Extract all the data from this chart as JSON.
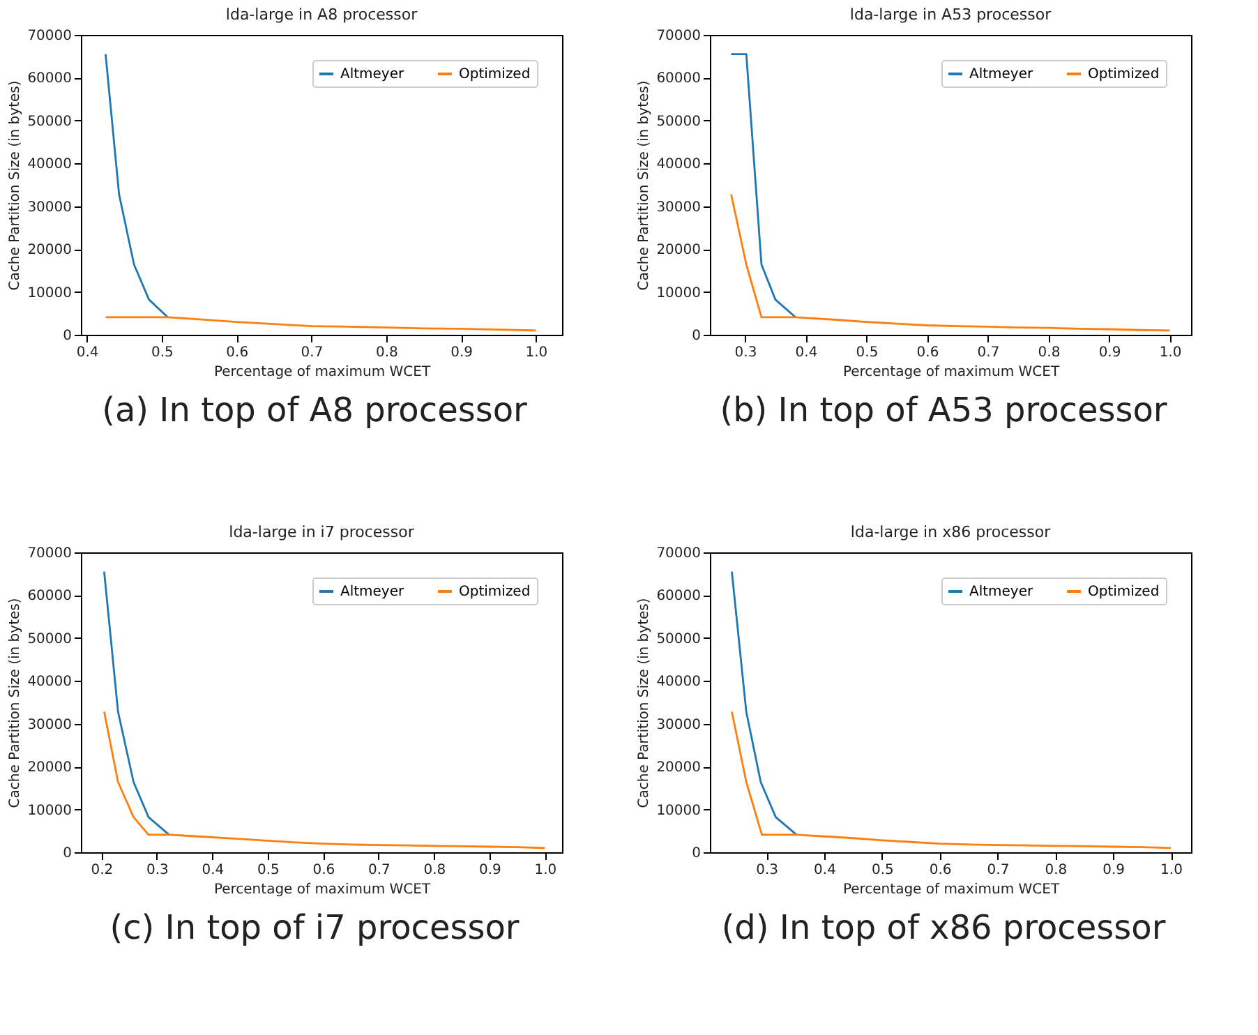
{
  "chart_data": [
    {
      "type": "line",
      "title": "lda-large in A8 processor",
      "xlabel": "Percentage of maximum WCET",
      "ylabel": "Cache Partition Size (in bytes)",
      "annotations": [
        "(a) In top of A8 processor"
      ],
      "xlim": [
        0.392,
        1.035
      ],
      "ylim": [
        0,
        70000
      ],
      "xticks": [
        {
          "value": 0.4,
          "label": "0.4"
        },
        {
          "value": 0.5,
          "label": "0.5"
        },
        {
          "value": 0.6,
          "label": "0.6"
        },
        {
          "value": 0.7,
          "label": "0.7"
        },
        {
          "value": 0.8,
          "label": "0.8"
        },
        {
          "value": 0.9,
          "label": "0.9"
        },
        {
          "value": 1.0,
          "label": "1.0"
        }
      ],
      "yticks": [
        0,
        10000,
        20000,
        30000,
        40000,
        50000,
        60000,
        70000
      ],
      "grid": false,
      "legend": "top right",
      "marker": "none",
      "line_style": "solid",
      "series": [
        {
          "name": "Altmeyer",
          "color": "#1f77b4",
          "x": [
            0.425,
            0.443,
            0.463,
            0.483,
            0.508
          ],
          "values": [
            65500,
            32800,
            16400,
            8200,
            4100
          ]
        },
        {
          "name": "Optimized",
          "color": "#ff7f0e",
          "x": [
            0.425,
            0.508,
            0.55,
            0.6,
            0.65,
            0.7,
            0.75,
            0.8,
            0.85,
            0.9,
            0.95,
            1.0
          ],
          "values": [
            4100,
            4100,
            3600,
            3000,
            2500,
            2000,
            1900,
            1700,
            1500,
            1400,
            1200,
            1000
          ]
        }
      ]
    },
    {
      "type": "line",
      "title": "lda-large in A53 processor",
      "xlabel": "Percentage of maximum WCET",
      "ylabel": "Cache Partition Size (in bytes)",
      "annotations": [
        "(b) In top of A53 processor"
      ],
      "xlim": [
        0.242,
        1.035
      ],
      "ylim": [
        0,
        70000
      ],
      "xticks": [
        {
          "value": 0.3,
          "label": "0.3"
        },
        {
          "value": 0.4,
          "label": "0.4"
        },
        {
          "value": 0.5,
          "label": "0.5"
        },
        {
          "value": 0.6,
          "label": "0.6"
        },
        {
          "value": 0.7,
          "label": "0.7"
        },
        {
          "value": 0.8,
          "label": "0.8"
        },
        {
          "value": 0.9,
          "label": "0.9"
        },
        {
          "value": 1.0,
          "label": "1.0"
        }
      ],
      "yticks": [
        0,
        10000,
        20000,
        30000,
        40000,
        50000,
        60000,
        70000
      ],
      "grid": false,
      "legend": "top right",
      "marker": "none",
      "line_style": "solid",
      "series": [
        {
          "name": "Altmeyer",
          "color": "#1f77b4",
          "x": [
            0.277,
            0.302,
            0.327,
            0.35,
            0.383
          ],
          "values": [
            65500,
            65500,
            16400,
            8200,
            4100
          ]
        },
        {
          "name": "Optimized",
          "color": "#ff7f0e",
          "x": [
            0.277,
            0.302,
            0.327,
            0.383,
            0.45,
            0.5,
            0.55,
            0.6,
            0.65,
            0.7,
            0.75,
            0.8,
            0.85,
            0.9,
            0.95,
            1.0
          ],
          "values": [
            32800,
            16400,
            4100,
            4100,
            3500,
            3000,
            2600,
            2200,
            2000,
            1900,
            1700,
            1600,
            1400,
            1300,
            1100,
            1000
          ]
        }
      ]
    },
    {
      "type": "line",
      "title": "lda-large in i7 processor",
      "xlabel": "Percentage of maximum WCET",
      "ylabel": "Cache Partition Size (in bytes)",
      "annotations": [
        "(c) In top of i7 processor"
      ],
      "xlim": [
        0.163,
        1.031
      ],
      "ylim": [
        0,
        70000
      ],
      "xticks": [
        {
          "value": 0.2,
          "label": "0.2"
        },
        {
          "value": 0.3,
          "label": "0.3"
        },
        {
          "value": 0.4,
          "label": "0.4"
        },
        {
          "value": 0.5,
          "label": "0.5"
        },
        {
          "value": 0.6,
          "label": "0.6"
        },
        {
          "value": 0.7,
          "label": "0.7"
        },
        {
          "value": 0.8,
          "label": "0.8"
        },
        {
          "value": 0.9,
          "label": "0.9"
        },
        {
          "value": 1.0,
          "label": "1.0"
        }
      ],
      "yticks": [
        0,
        10000,
        20000,
        30000,
        40000,
        50000,
        60000,
        70000
      ],
      "grid": false,
      "legend": "top right",
      "marker": "none",
      "line_style": "solid",
      "series": [
        {
          "name": "Altmeyer",
          "color": "#1f77b4",
          "x": [
            0.205,
            0.23,
            0.258,
            0.285,
            0.322
          ],
          "values": [
            65500,
            32800,
            16400,
            8200,
            4100
          ]
        },
        {
          "name": "Optimized",
          "color": "#ff7f0e",
          "x": [
            0.205,
            0.23,
            0.258,
            0.285,
            0.322,
            0.4,
            0.45,
            0.5,
            0.55,
            0.6,
            0.65,
            0.7,
            0.75,
            0.8,
            0.85,
            0.9,
            0.95,
            1.0
          ],
          "values": [
            32800,
            16400,
            8200,
            4100,
            4100,
            3500,
            3100,
            2700,
            2300,
            2000,
            1800,
            1700,
            1600,
            1500,
            1400,
            1300,
            1200,
            1000
          ]
        }
      ]
    },
    {
      "type": "line",
      "title": "lda-large in x86 processor",
      "xlabel": "Percentage of maximum WCET",
      "ylabel": "Cache Partition Size (in bytes)",
      "annotations": [
        "(d) In top of x86 processor"
      ],
      "xlim": [
        0.202,
        1.035
      ],
      "ylim": [
        0,
        70000
      ],
      "xticks": [
        {
          "value": 0.3,
          "label": "0.3"
        },
        {
          "value": 0.4,
          "label": "0.4"
        },
        {
          "value": 0.5,
          "label": "0.5"
        },
        {
          "value": 0.6,
          "label": "0.6"
        },
        {
          "value": 0.7,
          "label": "0.7"
        },
        {
          "value": 0.8,
          "label": "0.8"
        },
        {
          "value": 0.9,
          "label": "0.9"
        },
        {
          "value": 1.0,
          "label": "1.0"
        }
      ],
      "yticks": [
        0,
        10000,
        20000,
        30000,
        40000,
        50000,
        60000,
        70000
      ],
      "grid": false,
      "legend": "top right",
      "marker": "none",
      "line_style": "solid",
      "series": [
        {
          "name": "Altmeyer",
          "color": "#1f77b4",
          "x": [
            0.24,
            0.265,
            0.29,
            0.316,
            0.352
          ],
          "values": [
            65500,
            32800,
            16400,
            8200,
            4100
          ]
        },
        {
          "name": "Optimized",
          "color": "#ff7f0e",
          "x": [
            0.24,
            0.265,
            0.292,
            0.352,
            0.4,
            0.45,
            0.5,
            0.55,
            0.6,
            0.65,
            0.7,
            0.75,
            0.8,
            0.85,
            0.9,
            0.95,
            1.0
          ],
          "values": [
            32800,
            16400,
            4100,
            4100,
            3700,
            3300,
            2800,
            2400,
            2000,
            1800,
            1700,
            1600,
            1500,
            1400,
            1300,
            1200,
            1000
          ]
        }
      ]
    }
  ]
}
